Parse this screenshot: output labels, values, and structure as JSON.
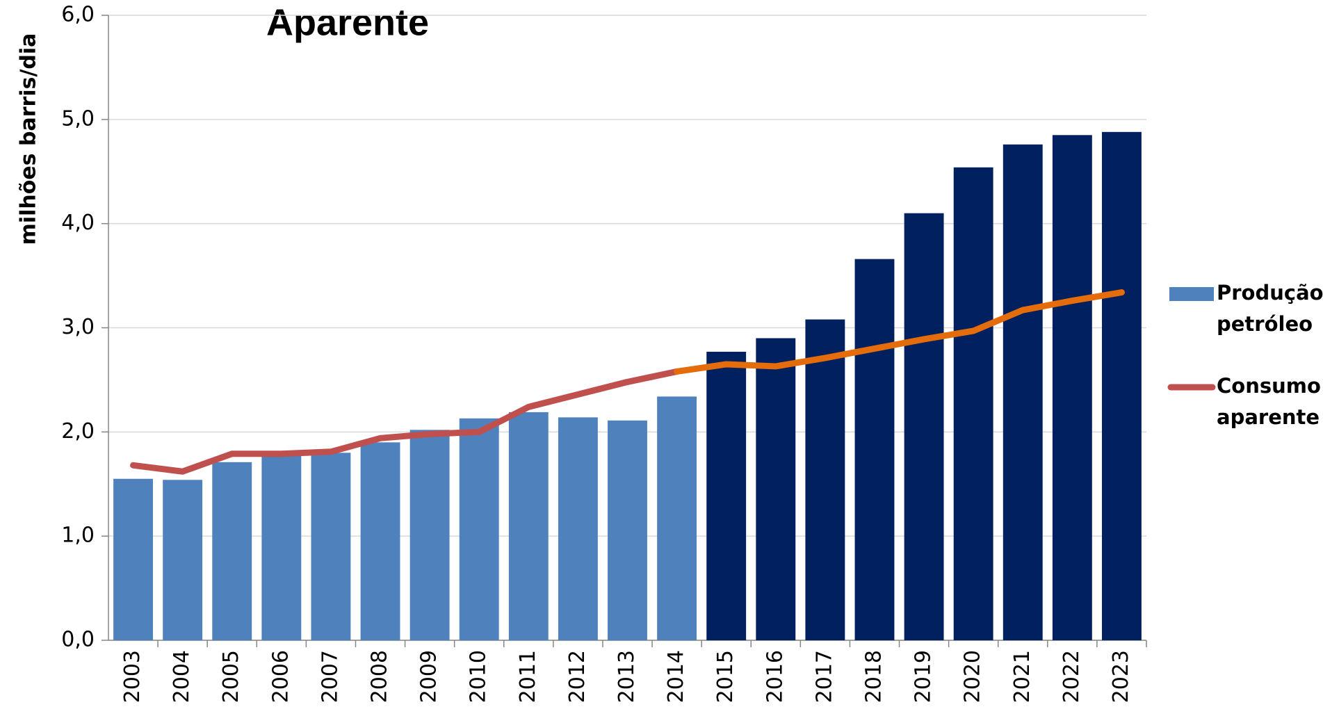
{
  "chart_data": {
    "type": "bar-line",
    "title": "Aparente",
    "y_label": "milhões barris/dia",
    "categories": [
      "2003",
      "2004",
      "2005",
      "2006",
      "2007",
      "2008",
      "2009",
      "2010",
      "2011",
      "2012",
      "2013",
      "2014",
      "2015",
      "2016",
      "2017",
      "2018",
      "2019",
      "2020",
      "2021",
      "2022",
      "2023"
    ],
    "series": [
      {
        "name": "Produção petróleo",
        "type": "bar",
        "color": "#4f81bd",
        "colors": [
          "#4f81bd",
          "#4f81bd",
          "#4f81bd",
          "#4f81bd",
          "#4f81bd",
          "#4f81bd",
          "#4f81bd",
          "#4f81bd",
          "#4f81bd",
          "#4f81bd",
          "#4f81bd",
          "#4f81bd",
          "#002060",
          "#002060",
          "#002060",
          "#002060",
          "#002060",
          "#002060",
          "#002060",
          "#002060",
          "#002060"
        ],
        "values": [
          1.55,
          1.54,
          1.71,
          1.78,
          1.8,
          1.9,
          2.02,
          2.13,
          2.19,
          2.14,
          2.11,
          2.34,
          2.77,
          2.9,
          3.08,
          3.66,
          4.1,
          4.54,
          4.76,
          4.85,
          4.88
        ]
      },
      {
        "name": "Consumo aparente",
        "type": "line",
        "color": "#c0504d",
        "colors": [
          "#c0504d",
          "#c0504d",
          "#c0504d",
          "#c0504d",
          "#c0504d",
          "#c0504d",
          "#c0504d",
          "#c0504d",
          "#c0504d",
          "#c0504d",
          "#c0504d",
          "#c0504d",
          "#e46c0a",
          "#e46c0a",
          "#e46c0a",
          "#e46c0a",
          "#e46c0a",
          "#e46c0a",
          "#e46c0a",
          "#e46c0a",
          "#e46c0a"
        ],
        "values": [
          1.68,
          1.62,
          1.79,
          1.79,
          1.81,
          1.94,
          1.98,
          2.0,
          2.24,
          2.36,
          2.48,
          2.58,
          2.65,
          2.63,
          2.71,
          2.8,
          2.89,
          2.97,
          3.17,
          3.26,
          3.34
        ]
      }
    ],
    "ylim": [
      0,
      6
    ],
    "yticks": [
      {
        "value": 0,
        "label": "0,0"
      },
      {
        "value": 1,
        "label": "1,0"
      },
      {
        "value": 2,
        "label": "2,0"
      },
      {
        "value": 3,
        "label": "3,0"
      },
      {
        "value": 4,
        "label": "4,0"
      },
      {
        "value": 5,
        "label": "5,0"
      },
      {
        "value": 6,
        "label": "6,0"
      }
    ],
    "grid": true,
    "legend": "right"
  }
}
